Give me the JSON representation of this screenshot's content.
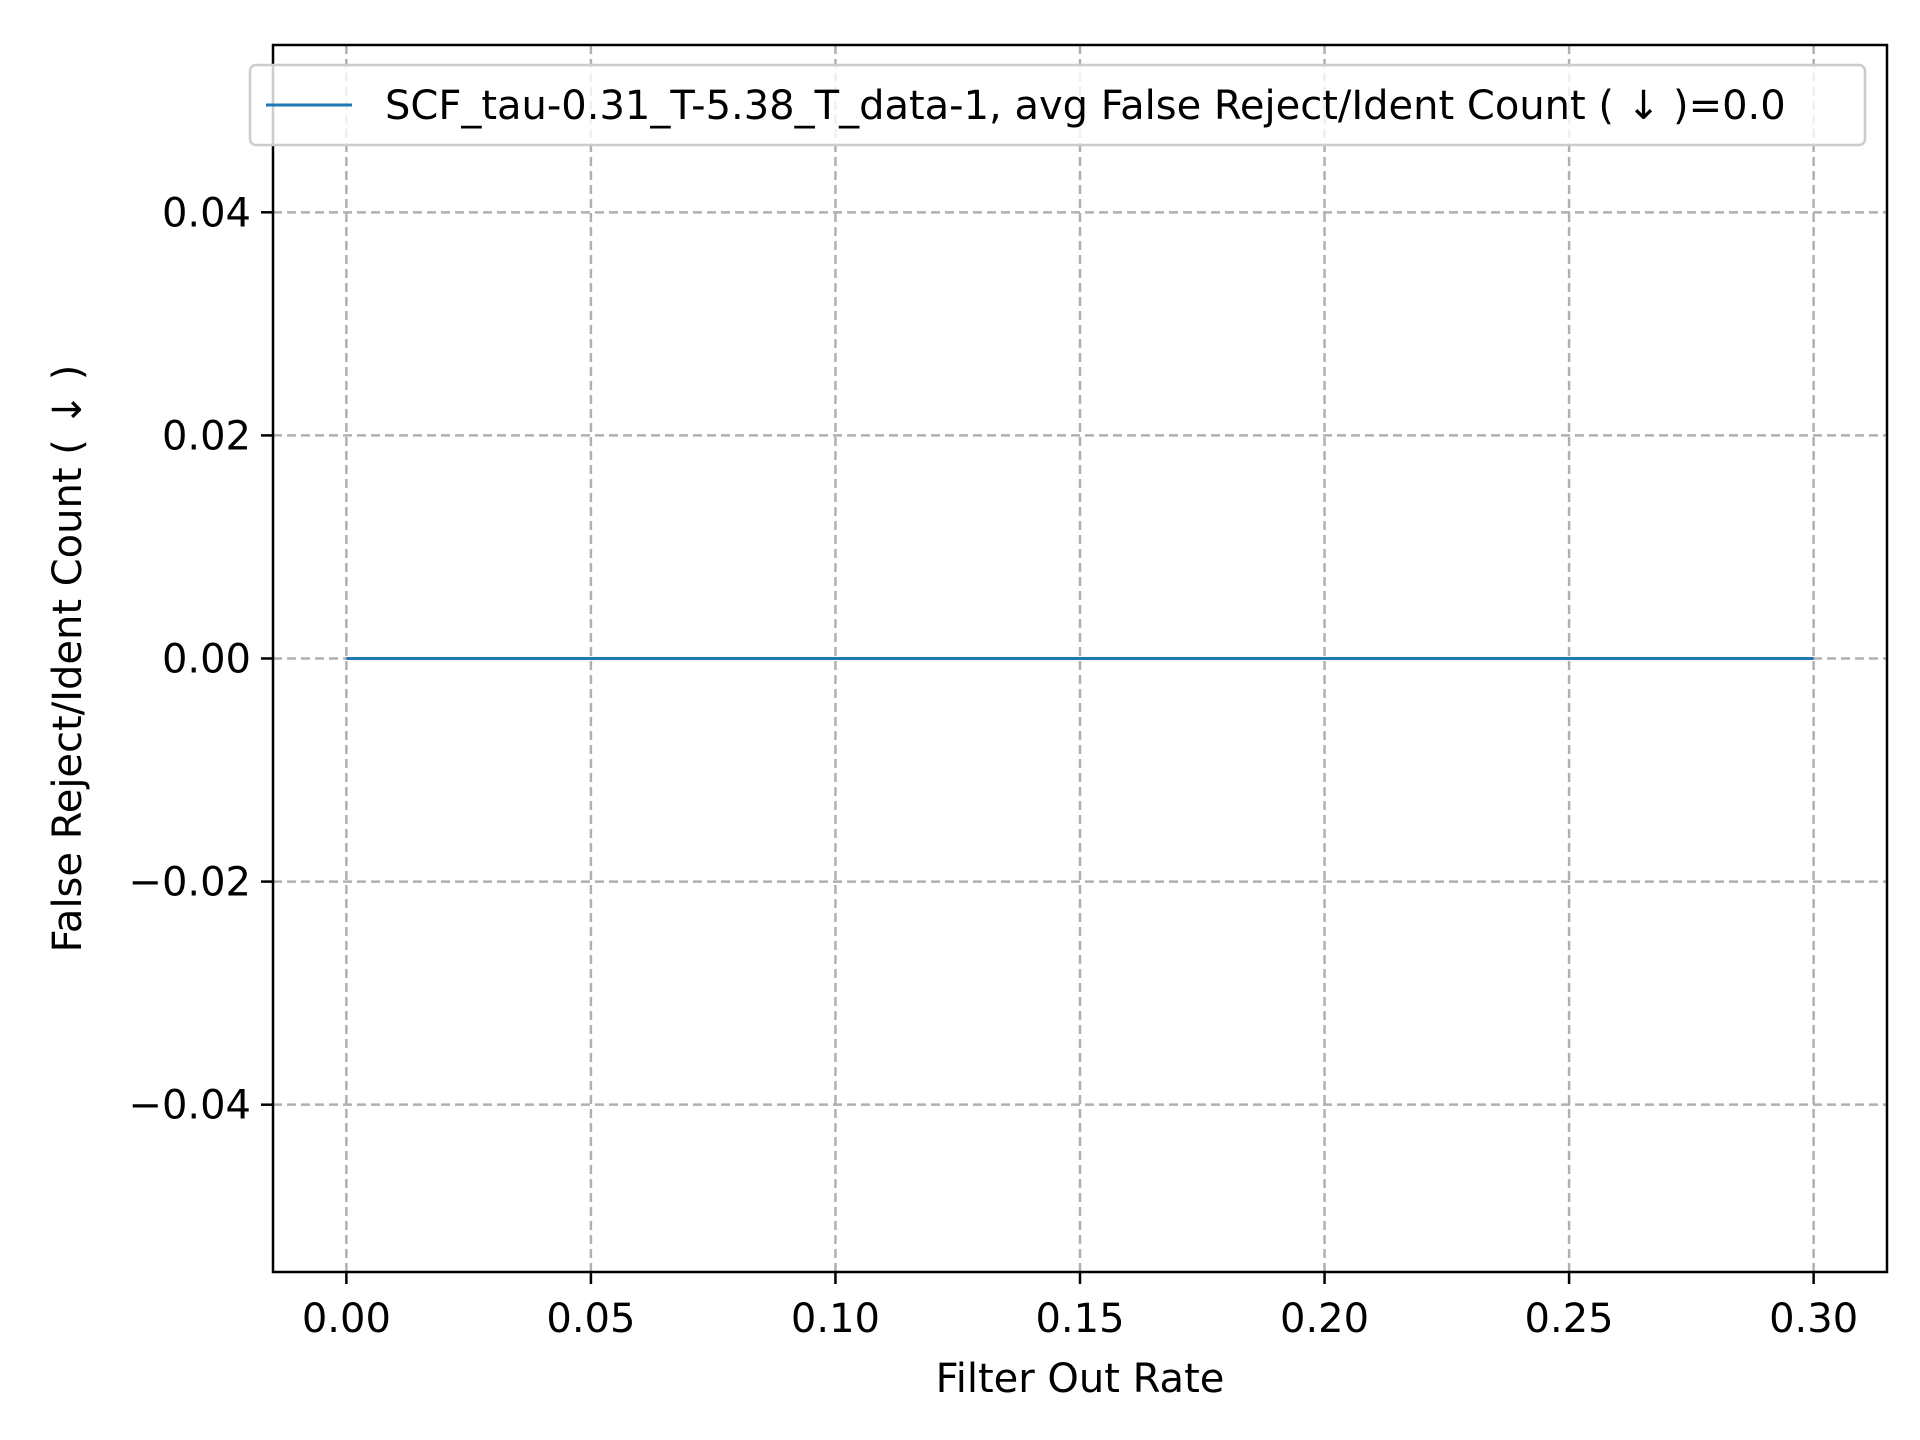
{
  "chart_data": {
    "type": "line",
    "title": "",
    "xlabel": "Filter Out Rate",
    "ylabel": "False Reject/Ident Count ( ↓ )",
    "xlim": [
      -0.015,
      0.315
    ],
    "ylim": [
      -0.055,
      0.055
    ],
    "xticks": [
      0.0,
      0.05,
      0.1,
      0.15,
      0.2,
      0.25,
      0.3
    ],
    "xtick_labels": [
      "0.00",
      "0.05",
      "0.10",
      "0.15",
      "0.20",
      "0.25",
      "0.30"
    ],
    "yticks": [
      -0.04,
      -0.02,
      0.0,
      0.02,
      0.04
    ],
    "ytick_labels": [
      "−0.04",
      "−0.02",
      "0.00",
      "0.02",
      "0.04"
    ],
    "grid": true,
    "legend_position": "top-right",
    "series": [
      {
        "name": "SCF_tau-0.31_T-5.38_T_data-1, avg False Reject/Ident Count ( ↓ )=0.0",
        "color": "#1f77b4",
        "x": [
          0.0,
          0.05,
          0.1,
          0.15,
          0.2,
          0.25,
          0.3
        ],
        "y": [
          0.0,
          0.0,
          0.0,
          0.0,
          0.0,
          0.0,
          0.0
        ]
      }
    ]
  }
}
